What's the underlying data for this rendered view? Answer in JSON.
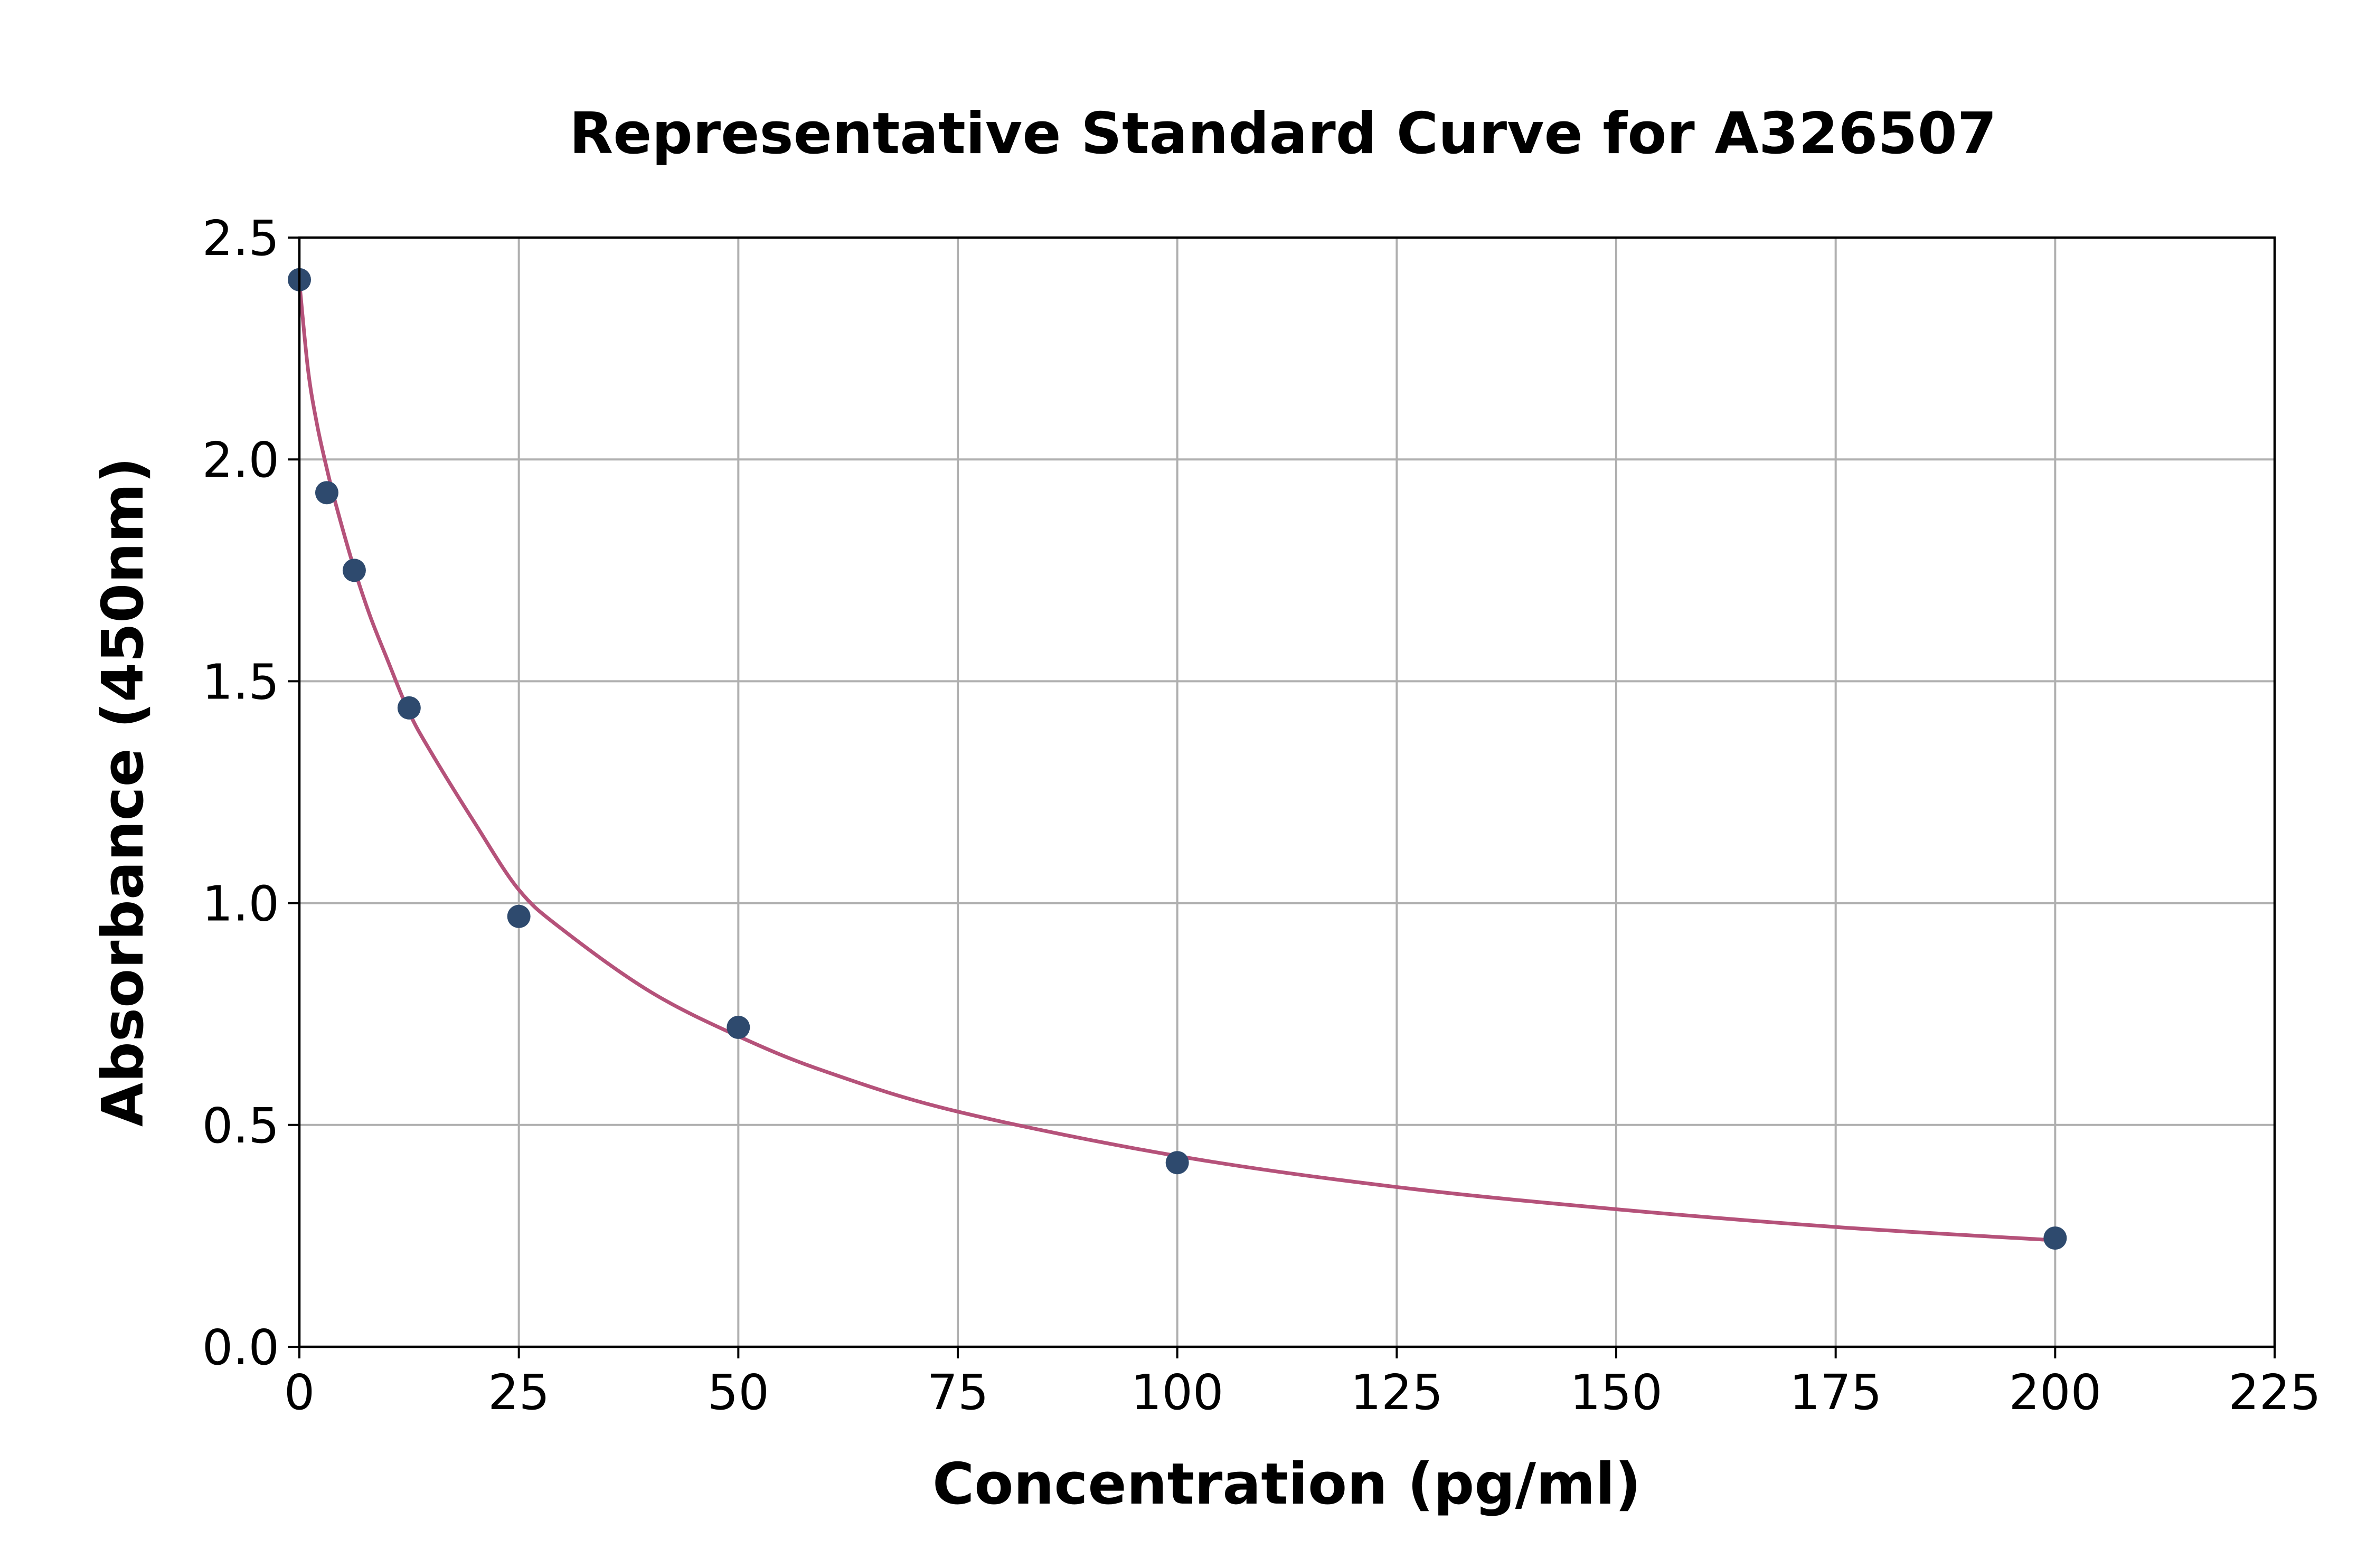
{
  "chart_data": {
    "type": "scatter",
    "title": "Representative Standard Curve for A326507",
    "xlabel": "Concentration (pg/ml)",
    "ylabel": "Absorbance (450nm)",
    "xlim": [
      0,
      225
    ],
    "ylim": [
      0,
      2.5
    ],
    "x_ticks": [
      0,
      25,
      50,
      75,
      100,
      125,
      150,
      175,
      200,
      225
    ],
    "y_ticks": [
      0.0,
      0.5,
      1.0,
      1.5,
      2.0,
      2.5
    ],
    "x_tick_labels": [
      "0",
      "25",
      "50",
      "75",
      "100",
      "125",
      "150",
      "175",
      "200",
      "225"
    ],
    "y_tick_labels": [
      "0.0",
      "0.5",
      "1.0",
      "1.5",
      "2.0",
      "2.5"
    ],
    "grid": true,
    "series": [
      {
        "kind": "points",
        "color": "#2e4a6e",
        "x": [
          0,
          3.125,
          6.25,
          12.5,
          25,
          50,
          100,
          200
        ],
        "y": [
          2.405,
          1.925,
          1.75,
          1.44,
          0.97,
          0.72,
          0.415,
          0.245
        ]
      },
      {
        "kind": "fit-curve",
        "color": "#b5527a",
        "x": [
          0,
          1,
          2,
          3,
          4,
          6,
          8,
          10,
          12.5,
          15,
          20,
          25,
          30,
          40,
          50,
          60,
          75,
          100,
          125,
          150,
          175,
          200
        ],
        "y": [
          2.4,
          2.2,
          2.08,
          1.99,
          1.91,
          1.77,
          1.65,
          1.55,
          1.43,
          1.34,
          1.18,
          1.03,
          0.94,
          0.8,
          0.7,
          0.62,
          0.53,
          0.43,
          0.36,
          0.31,
          0.27,
          0.24
        ]
      }
    ]
  }
}
